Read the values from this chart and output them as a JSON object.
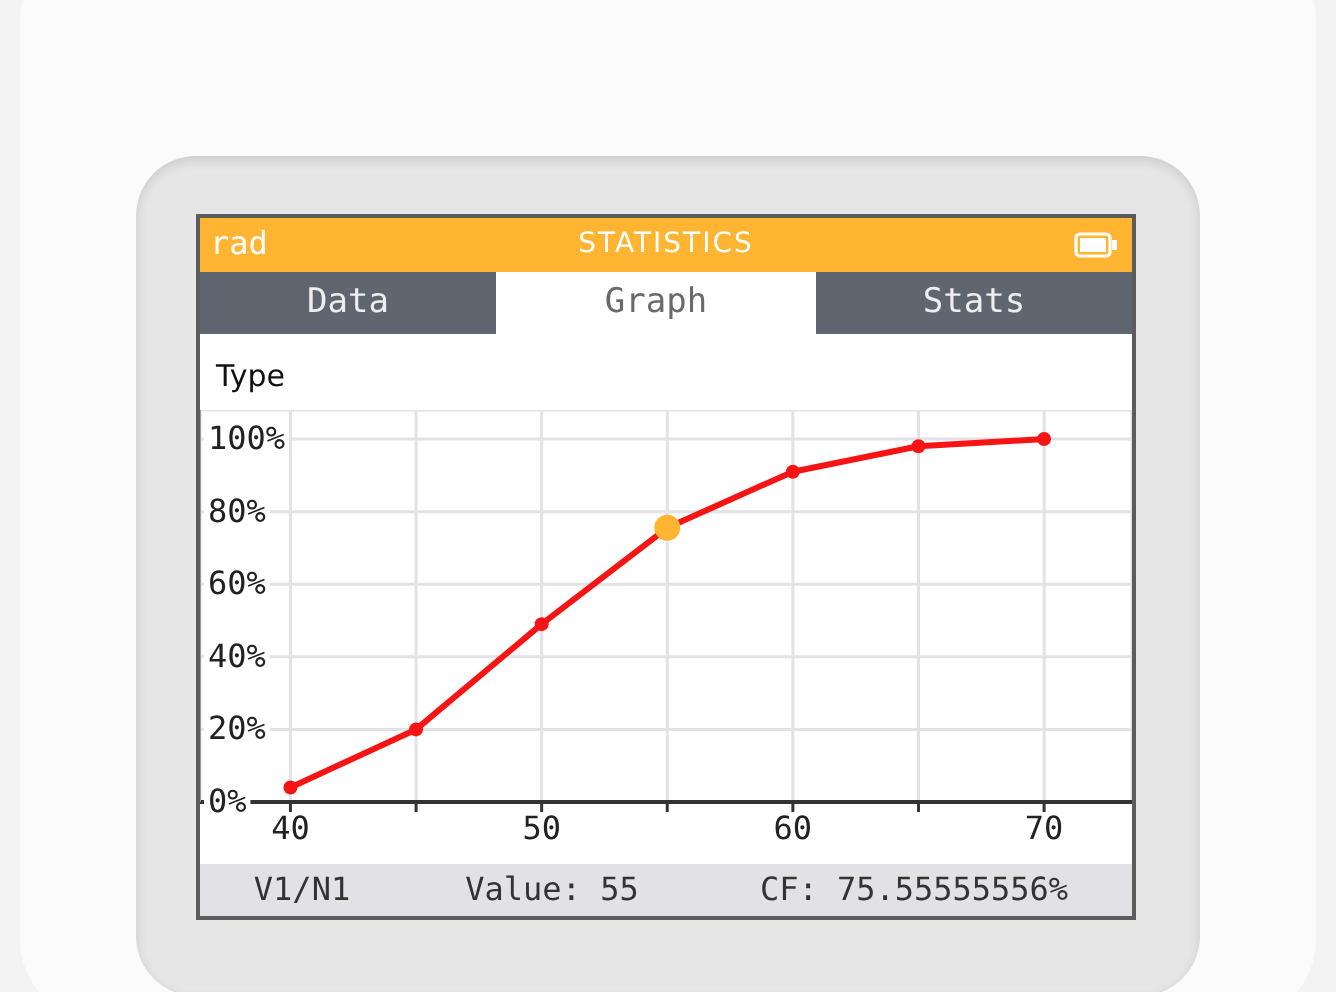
{
  "chart_data": {
    "type": "line",
    "title": "STATISTICS",
    "annotations": [
      "rad",
      "Data",
      "Graph",
      "Stats",
      "Type",
      "V1/N1",
      "Value: 55",
      "CF: 75.55555556%"
    ],
    "x": [
      40,
      45,
      50,
      55,
      60,
      65,
      70
    ],
    "series": [
      {
        "color": "#f71414",
        "values": [
          4,
          20,
          49,
          75.55555556,
          91,
          98,
          100
        ]
      },
      {
        "type": "scatter",
        "color": "#ffb531",
        "x": [
          55
        ],
        "values": [
          75.55555556
        ]
      }
    ],
    "xlim": [
      36.4,
      73.5
    ],
    "xticks": [
      40,
      {
        "value": 45,
        "label": null
      },
      50,
      {
        "value": 55,
        "label": null
      },
      60,
      {
        "value": 65,
        "label": null
      },
      70
    ],
    "ylim": [
      0,
      108
    ],
    "yticks": [
      {
        "value": 0,
        "label": "0%"
      },
      {
        "value": 20,
        "label": "20%"
      },
      {
        "value": 40,
        "label": "40%"
      },
      {
        "value": 60,
        "label": "60%"
      },
      {
        "value": 80,
        "label": "80%"
      },
      {
        "value": 100,
        "label": "100%"
      }
    ],
    "grid": true,
    "marker": "circle"
  }
}
